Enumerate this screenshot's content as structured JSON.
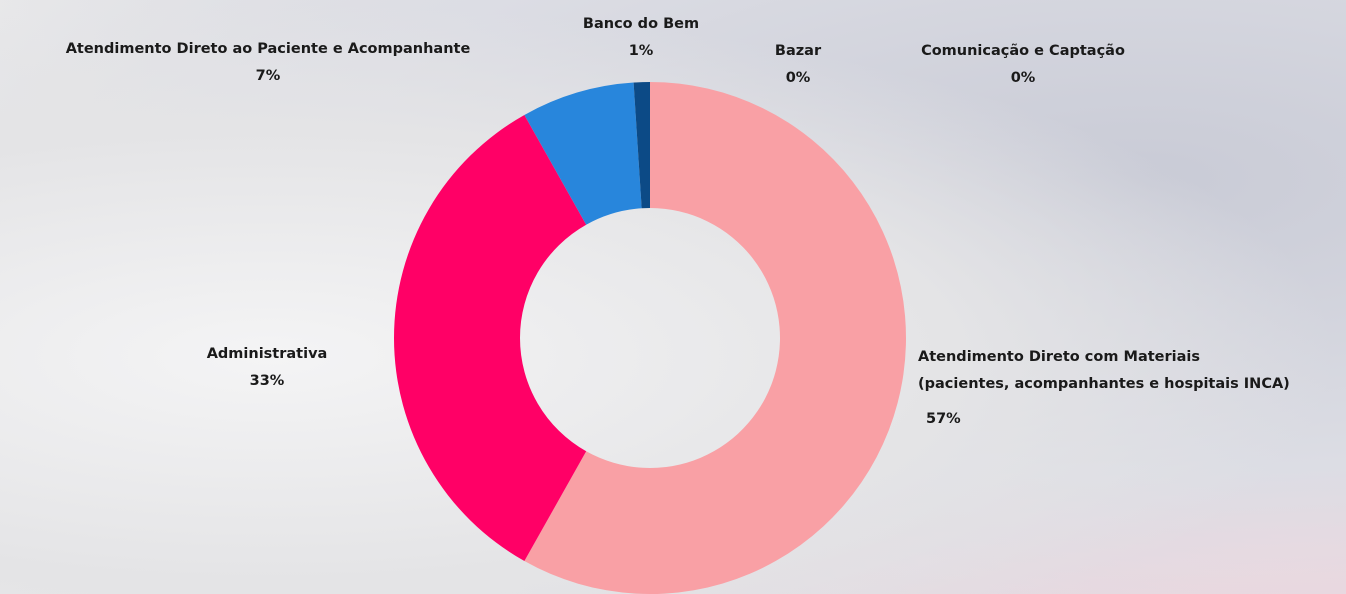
{
  "chart_data": {
    "type": "donut",
    "categories": [
      "Atendimento Direto com Materiais\n(pacientes, acompanhantes e hospitais INCA)",
      "Administrativa",
      "Atendimento Direto ao Paciente e Acompanhante",
      "Banco do Bem",
      "Bazar",
      "Comunicação e Captação"
    ],
    "values": [
      57,
      33,
      7,
      1,
      0,
      0
    ],
    "value_labels": [
      "57%",
      "33%",
      "7%",
      "1%",
      "0%",
      "0%"
    ],
    "colors": [
      "#f9a0a5",
      "#ff0066",
      "#2886dc",
      "#0c4a86",
      "#ff8a2a",
      "#9b59b6"
    ]
  }
}
